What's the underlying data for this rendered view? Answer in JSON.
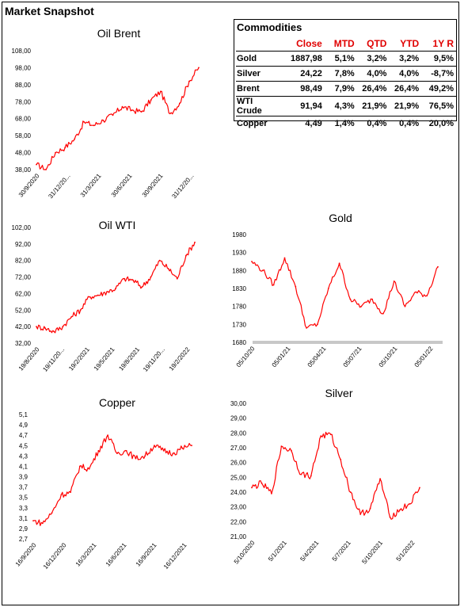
{
  "page": {
    "title": "Market Snapshot"
  },
  "commodities": {
    "title": "Commodities",
    "headers": [
      "",
      "Close",
      "MTD",
      "QTD",
      "YTD",
      "1Y R"
    ],
    "rows": [
      [
        "Gold",
        "1887,98",
        "5,1%",
        "3,2%",
        "3,2%",
        "9,5%"
      ],
      [
        "Silver",
        "24,22",
        "7,8%",
        "4,0%",
        "4,0%",
        "-8,7%"
      ],
      [
        "Brent",
        "98,49",
        "7,9%",
        "26,4%",
        "26,4%",
        "49,2%"
      ],
      [
        "WTI Crude",
        "91,94",
        "4,3%",
        "21,9%",
        "21,9%",
        "76,5%"
      ],
      [
        "Copper",
        "4,49",
        "1,4%",
        "0,4%",
        "0,4%",
        "20,0%"
      ]
    ]
  },
  "chart_data": [
    {
      "id": "brent",
      "type": "line",
      "title": "Oil Brent",
      "color": "#ff0000",
      "ylim": [
        38,
        108
      ],
      "yticks": [
        "108,00",
        "98,00",
        "88,00",
        "78,00",
        "68,00",
        "58,00",
        "48,00",
        "38,00"
      ],
      "xticks": [
        "30/9/2020",
        "31/12/20...",
        "31/3/2021",
        "30/6/2021",
        "30/9/2021",
        "31/12/20..."
      ],
      "x": [
        "30/9/2020",
        "31/10/2020",
        "30/11/2020",
        "31/12/2020",
        "31/1/2021",
        "28/2/2021",
        "31/3/2021",
        "30/4/2021",
        "31/5/2021",
        "30/6/2021",
        "31/7/2021",
        "31/8/2021",
        "30/9/2021",
        "31/10/2021",
        "30/11/2021",
        "31/12/2021",
        "31/1/2022",
        "28/2/2022"
      ],
      "values": [
        41,
        38,
        48,
        51,
        56,
        66,
        64,
        67,
        70,
        75,
        73,
        72,
        79,
        84,
        71,
        77,
        90,
        98
      ]
    },
    {
      "id": "wti",
      "type": "line",
      "title": "Oil WTI",
      "color": "#ff0000",
      "ylim": [
        32,
        102
      ],
      "yticks": [
        "102,00",
        "92,00",
        "82,00",
        "72,00",
        "62,00",
        "52,00",
        "42,00",
        "32,00"
      ],
      "xticks": [
        "19/8/2020",
        "19/11/20...",
        "19/2/2021",
        "19/5/2021",
        "19/8/2021",
        "19/11/20...",
        "19/2/2022"
      ],
      "x": [
        "19/8/2020",
        "19/9/2020",
        "19/10/2020",
        "19/11/2020",
        "19/12/2020",
        "19/1/2021",
        "19/2/2021",
        "19/3/2021",
        "19/4/2021",
        "19/5/2021",
        "19/6/2021",
        "19/7/2021",
        "19/8/2021",
        "19/9/2021",
        "19/10/2021",
        "19/11/2021",
        "19/12/2021",
        "19/1/2022",
        "19/2/2022"
      ],
      "values": [
        42,
        41,
        39,
        42,
        48,
        52,
        60,
        61,
        63,
        65,
        71,
        70,
        66,
        72,
        82,
        77,
        71,
        85,
        93
      ]
    },
    {
      "id": "gold",
      "type": "line",
      "title": "Gold",
      "color": "#ff0000",
      "ylim": [
        1680,
        1980
      ],
      "yticks": [
        "1980",
        "1930",
        "1880",
        "1830",
        "1780",
        "1730",
        "1680"
      ],
      "xticks": [
        "05/10/20",
        "05/01/21",
        "05/04/21",
        "05/07/21",
        "05/10/21",
        "05/01/22"
      ],
      "x": [
        "5/10/2020",
        "5/11/2020",
        "5/12/2020",
        "5/1/2021",
        "5/2/2021",
        "5/3/2021",
        "5/4/2021",
        "5/5/2021",
        "5/6/2021",
        "5/7/2021",
        "5/8/2021",
        "5/9/2021",
        "5/10/2021",
        "5/11/2021",
        "5/12/2021",
        "5/1/2022",
        "5/2/2022",
        "5/3/2022"
      ],
      "values": [
        1905,
        1880,
        1840,
        1915,
        1835,
        1720,
        1730,
        1830,
        1900,
        1800,
        1780,
        1800,
        1760,
        1850,
        1780,
        1820,
        1810,
        1890
      ]
    },
    {
      "id": "copper",
      "type": "line",
      "title": "Copper",
      "color": "#ff0000",
      "ylim": [
        2.7,
        5.1
      ],
      "yticks": [
        "5,1",
        "4,9",
        "4,7",
        "4,5",
        "4,3",
        "4,1",
        "3,9",
        "3,7",
        "3,5",
        "3,3",
        "3,1",
        "2,9",
        "2,7"
      ],
      "xticks": [
        "16/9/2020",
        "16/12/2020",
        "16/3/2021",
        "16/6/2021",
        "16/9/2021",
        "16/12/2021"
      ],
      "x": [
        "16/9/2020",
        "16/10/2020",
        "16/11/2020",
        "16/12/2020",
        "16/1/2021",
        "16/2/2021",
        "16/3/2021",
        "16/4/2021",
        "16/5/2021",
        "16/6/2021",
        "16/7/2021",
        "16/8/2021",
        "16/9/2021",
        "16/10/2021",
        "16/11/2021",
        "16/12/2021",
        "16/1/2022",
        "16/2/2022"
      ],
      "values": [
        3.05,
        3.0,
        3.2,
        3.55,
        3.6,
        4.1,
        4.05,
        4.4,
        4.7,
        4.35,
        4.4,
        4.25,
        4.3,
        4.5,
        4.4,
        4.35,
        4.45,
        4.5
      ]
    },
    {
      "id": "silver",
      "type": "line",
      "title": "Silver",
      "color": "#ff0000",
      "ylim": [
        21,
        30
      ],
      "yticks": [
        "30,00",
        "29,00",
        "28,00",
        "27,00",
        "26,00",
        "25,00",
        "24,00",
        "23,00",
        "22,00",
        "21,00"
      ],
      "xticks": [
        "5/10/2020",
        "5/1/2021",
        "5/4/2021",
        "5/7/2021",
        "5/10/2021",
        "5/1/2022"
      ],
      "x": [
        "5/10/2020",
        "5/11/2020",
        "5/12/2020",
        "5/1/2021",
        "5/2/2021",
        "5/3/2021",
        "5/4/2021",
        "5/5/2021",
        "5/6/2021",
        "5/7/2021",
        "5/8/2021",
        "5/9/2021",
        "5/10/2021",
        "5/11/2021",
        "5/12/2021",
        "5/1/2022",
        "5/2/2022",
        "5/3/2022"
      ],
      "values": [
        24.3,
        24.6,
        23.9,
        27.1,
        26.8,
        25.2,
        25.1,
        27.8,
        27.9,
        26.2,
        24.0,
        22.5,
        22.9,
        24.9,
        22.3,
        22.8,
        23.2,
        24.3
      ]
    }
  ]
}
